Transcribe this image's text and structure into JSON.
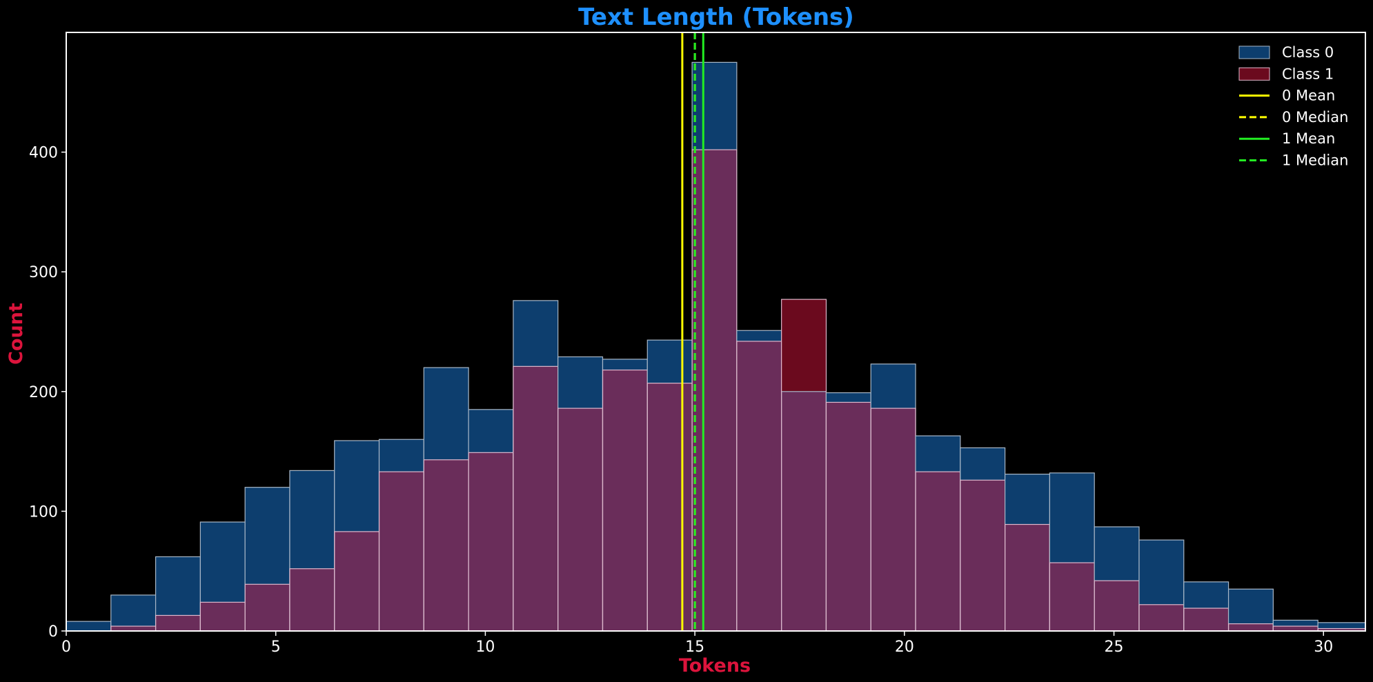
{
  "chart_data": {
    "type": "histogram",
    "title": "Text Length (Tokens)",
    "xlabel": "Tokens",
    "ylabel": "Count",
    "xlim": [
      0,
      31
    ],
    "ylim": [
      0,
      500
    ],
    "xticks": [
      0,
      5,
      10,
      15,
      20,
      25,
      30
    ],
    "yticks": [
      0,
      100,
      200,
      300,
      400
    ],
    "bin_edges": [
      0,
      1.0667,
      2.1333,
      3.2,
      4.2667,
      5.3333,
      6.4,
      7.4667,
      8.5333,
      9.6,
      10.6667,
      11.7333,
      12.8,
      13.8667,
      14.9333,
      16.0,
      17.0667,
      18.1333,
      19.2,
      20.2667,
      21.3333,
      22.4,
      23.4667,
      24.5333,
      25.6,
      26.6667,
      27.7333,
      28.8,
      29.8667,
      31.0
    ],
    "series": [
      {
        "name": "Class 0",
        "color": "#0d3e6e",
        "values": [
          8,
          30,
          62,
          91,
          120,
          134,
          159,
          160,
          220,
          185,
          276,
          229,
          227,
          243,
          475,
          251,
          200,
          199,
          223,
          163,
          153,
          131,
          132,
          87,
          76,
          41,
          35,
          9,
          7
        ]
      },
      {
        "name": "Class 1",
        "color": "#6b0a1e",
        "values": [
          0,
          4,
          13,
          24,
          39,
          52,
          83,
          133,
          143,
          149,
          221,
          186,
          218,
          207,
          402,
          242,
          277,
          191,
          186,
          133,
          126,
          89,
          57,
          42,
          22,
          19,
          6,
          4,
          2
        ]
      }
    ],
    "overlap_color": "#6a2d5a",
    "vlines": [
      {
        "name": "0 Mean",
        "x": 14.7,
        "color": "#ffff00",
        "style": "solid"
      },
      {
        "name": "0 Median",
        "x": 15.0,
        "color": "#ffff00",
        "style": "dashed"
      },
      {
        "name": "1 Mean",
        "x": 15.2,
        "color": "#22ee22",
        "style": "solid"
      },
      {
        "name": "1 Median",
        "x": 15.0,
        "color": "#22ee22",
        "style": "dashed"
      }
    ],
    "legend_position": "top-right",
    "grid": false,
    "title_color": "#1e90ff",
    "label_color": "#dc143c"
  }
}
